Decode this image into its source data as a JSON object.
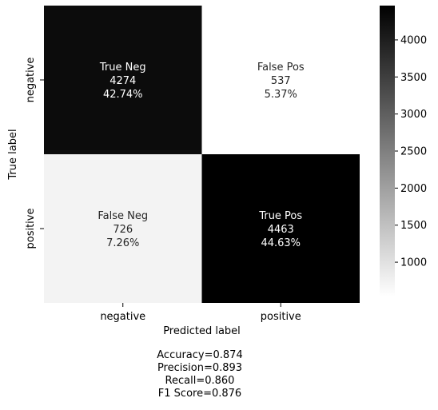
{
  "chart_data": {
    "type": "heatmap",
    "title": "",
    "xlabel": "Predicted label",
    "ylabel": "True label",
    "x_categories": [
      "negative",
      "positive"
    ],
    "y_categories": [
      "negative",
      "positive"
    ],
    "cells": [
      [
        {
          "name": "True Neg",
          "count": "4274",
          "percent": "42.74%",
          "value": 4274
        },
        {
          "name": "False Pos",
          "count": "537",
          "percent": "5.37%",
          "value": 537
        }
      ],
      [
        {
          "name": "False Neg",
          "count": "726",
          "percent": "7.26%",
          "value": 726
        },
        {
          "name": "True Pos",
          "count": "4463",
          "percent": "44.63%",
          "value": 4463
        }
      ]
    ],
    "colorbar": {
      "vmin": 537,
      "vmax": 4463,
      "ticks": [
        1000,
        1500,
        2000,
        2500,
        3000,
        3500,
        4000
      ],
      "colormap": "binary"
    }
  },
  "stats": {
    "accuracy": "Accuracy=0.874",
    "precision": "Precision=0.893",
    "recall": "Recall=0.860",
    "f1": "F1 Score=0.876"
  }
}
